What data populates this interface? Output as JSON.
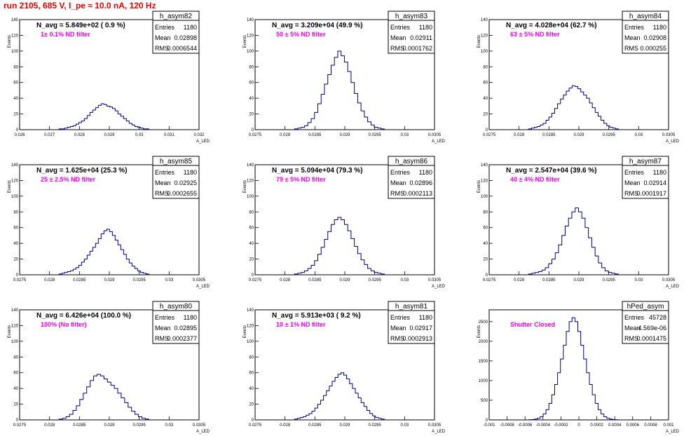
{
  "run_title": "run 2105,   685 V, I_pe ≈ 10.0 nA, 120 Hz",
  "colors": {
    "title": "#ee0000",
    "histogram": "#000080",
    "annotation": "#ee00ee",
    "frame": "#000000",
    "background": "#ffffff"
  },
  "chart_data": [
    {
      "type": "bar",
      "name": "h_asym82",
      "title": "N_avg = 5.849e+02 ( 0.9 %)",
      "annotation": "1± 0.1% ND filter",
      "stats": [
        [
          "Entries",
          "1180"
        ],
        [
          "Mean",
          "0.02898"
        ],
        [
          "RMS",
          "0.0006544"
        ]
      ],
      "ylabel": "Events",
      "xlabel": "A_LED",
      "xlim": [
        0.026,
        0.032
      ],
      "ylim": [
        0,
        140
      ],
      "xticks": [
        "0.026",
        "0.027",
        "0.028",
        "0.029",
        "0.03",
        "0.031",
        "0.032"
      ],
      "yticks": [
        "0",
        "20",
        "40",
        "60",
        "80",
        "100",
        "120",
        "140"
      ],
      "values": [
        1,
        1,
        2,
        3,
        4,
        5,
        7,
        9,
        11,
        14,
        18,
        22,
        25,
        28,
        31,
        33,
        32,
        30,
        29,
        27,
        24,
        20,
        17,
        14,
        11,
        8,
        6,
        4,
        3,
        2,
        1,
        1
      ]
    },
    {
      "type": "bar",
      "name": "h_asym83",
      "title": "N_avg = 3.209e+04 (49.9 %)",
      "annotation": "50 ± 5% ND filter",
      "stats": [
        [
          "Entries",
          "1180"
        ],
        [
          "Mean",
          "0.02911"
        ],
        [
          "RMS",
          "0.0001762"
        ]
      ],
      "ylabel": "Events",
      "xlabel": "A_LED",
      "xlim": [
        0.0275,
        0.0305
      ],
      "ylim": [
        0,
        140
      ],
      "xticks": [
        "0.0275",
        "0.028",
        "0.0285",
        "0.029",
        "0.0295",
        "0.03",
        "0.0305"
      ],
      "yticks": [
        "0",
        "20",
        "40",
        "60",
        "80",
        "100",
        "120",
        "140"
      ],
      "values": [
        1,
        2,
        3,
        5,
        9,
        14,
        22,
        33,
        45,
        58,
        70,
        82,
        92,
        100,
        94,
        86,
        74,
        60,
        46,
        34,
        24,
        16,
        10,
        6,
        3,
        2,
        1
      ]
    },
    {
      "type": "bar",
      "name": "h_asym84",
      "title": "N_avg = 4.028e+04 (62.7 %)",
      "annotation": "63 ± 5% ND filter",
      "stats": [
        [
          "Entries",
          "1180"
        ],
        [
          "Mean",
          "0.02908"
        ],
        [
          "RMS",
          "0.000255"
        ]
      ],
      "ylabel": "Events",
      "xlabel": "A_LED",
      "xlim": [
        0.0275,
        0.0305
      ],
      "ylim": [
        0,
        140
      ],
      "xticks": [
        "0.0275",
        "0.028",
        "0.0285",
        "0.029",
        "0.0295",
        "0.03",
        "0.0305"
      ],
      "yticks": [
        "0",
        "20",
        "40",
        "60",
        "80",
        "100",
        "120",
        "140"
      ],
      "values": [
        1,
        2,
        3,
        4,
        6,
        8,
        12,
        16,
        21,
        27,
        33,
        39,
        44,
        49,
        53,
        56,
        55,
        52,
        48,
        44,
        40,
        34,
        28,
        22,
        17,
        12,
        8,
        5,
        3,
        2,
        1
      ]
    },
    {
      "type": "bar",
      "name": "h_asym85",
      "title": "N_avg = 1.625e+04 (25.3 %)",
      "annotation": "25 ± 2.5% ND filter",
      "stats": [
        [
          "Entries",
          "1180"
        ],
        [
          "Mean",
          "0.02925"
        ],
        [
          "RMS",
          "0.0002655"
        ]
      ],
      "ylabel": "Events",
      "xlabel": "A_LED",
      "xlim": [
        0.0275,
        0.0305
      ],
      "ylim": [
        0,
        140
      ],
      "xticks": [
        "0.0275",
        "0.028",
        "0.0285",
        "0.029",
        "0.0295",
        "0.03",
        "0.0305"
      ],
      "yticks": [
        "0",
        "20",
        "40",
        "60",
        "80",
        "100",
        "120",
        "140"
      ],
      "values": [
        1,
        2,
        3,
        4,
        5,
        7,
        9,
        12,
        16,
        20,
        25,
        30,
        35,
        40,
        46,
        52,
        56,
        58,
        55,
        50,
        44,
        38,
        32,
        26,
        20,
        15,
        11,
        8,
        5,
        3,
        2,
        1
      ]
    },
    {
      "type": "bar",
      "name": "h_asym86",
      "title": "N_avg = 5.094e+04 (79.3 %)",
      "annotation": "79 ± 5% ND filter",
      "stats": [
        [
          "Entries",
          "1180"
        ],
        [
          "Mean",
          "0.02896"
        ],
        [
          "RMS",
          "0.0002113"
        ]
      ],
      "ylabel": "Events",
      "xlabel": "A_LED",
      "xlim": [
        0.0275,
        0.0305
      ],
      "ylim": [
        0,
        140
      ],
      "xticks": [
        "0.0275",
        "0.028",
        "0.0285",
        "0.029",
        "0.0295",
        "0.03",
        "0.0305"
      ],
      "yticks": [
        "0",
        "20",
        "40",
        "60",
        "80",
        "100",
        "120",
        "140"
      ],
      "values": [
        1,
        2,
        3,
        5,
        8,
        12,
        18,
        26,
        35,
        45,
        55,
        64,
        70,
        73,
        70,
        64,
        56,
        46,
        36,
        27,
        19,
        13,
        8,
        5,
        3,
        2,
        1
      ]
    },
    {
      "type": "bar",
      "name": "h_asym87",
      "title": "N_avg = 2.547e+04 (39.6 %)",
      "annotation": "40 ± 4% ND filter",
      "stats": [
        [
          "Entries",
          "1180"
        ],
        [
          "Mean",
          "0.02914"
        ],
        [
          "RMS",
          "0.0001917"
        ]
      ],
      "ylabel": "Events",
      "xlabel": "A_LED",
      "xlim": [
        0.0275,
        0.0305
      ],
      "ylim": [
        0,
        140
      ],
      "xticks": [
        "0.0275",
        "0.028",
        "0.0285",
        "0.029",
        "0.0295",
        "0.03",
        "0.0305"
      ],
      "yticks": [
        "0",
        "20",
        "40",
        "60",
        "80",
        "100",
        "120",
        "140"
      ],
      "values": [
        1,
        2,
        3,
        4,
        6,
        9,
        14,
        20,
        28,
        38,
        50,
        62,
        72,
        80,
        85,
        80,
        72,
        60,
        47,
        35,
        24,
        15,
        9,
        5,
        3,
        2,
        1
      ]
    },
    {
      "type": "bar",
      "name": "h_asym80",
      "title": "N_avg = 6.426e+04 (100.0 %)",
      "annotation": "100% (No filter)",
      "stats": [
        [
          "Entries",
          "1180"
        ],
        [
          "Mean",
          "0.02895"
        ],
        [
          "RMS",
          "0.0002377"
        ]
      ],
      "ylabel": "Events",
      "xlabel": "A_LED",
      "xlim": [
        0.0275,
        0.0305
      ],
      "ylim": [
        0,
        140
      ],
      "xticks": [
        "0.0275",
        "0.028",
        "0.0285",
        "0.029",
        "0.0295",
        "0.03",
        "0.0305"
      ],
      "yticks": [
        "0",
        "20",
        "40",
        "60",
        "80",
        "100",
        "120",
        "140"
      ],
      "values": [
        1,
        2,
        4,
        7,
        12,
        18,
        26,
        34,
        42,
        50,
        56,
        58,
        56,
        52,
        48,
        44,
        40,
        34,
        28,
        22,
        16,
        11,
        7,
        4,
        2,
        1
      ]
    },
    {
      "type": "bar",
      "name": "h_asym81",
      "title": "N_avg = 5.913e+03 ( 9.2 %)",
      "annotation": "10 ± 1% ND filter",
      "stats": [
        [
          "Entries",
          "1180"
        ],
        [
          "Mean",
          "0.02917"
        ],
        [
          "RMS",
          "0.0002913"
        ]
      ],
      "ylabel": "Events",
      "xlabel": "A_LED",
      "xlim": [
        0.0275,
        0.0305
      ],
      "ylim": [
        0,
        140
      ],
      "xticks": [
        "0.0275",
        "0.028",
        "0.0285",
        "0.029",
        "0.0295",
        "0.03",
        "0.0305"
      ],
      "yticks": [
        "0",
        "20",
        "40",
        "60",
        "80",
        "100",
        "120",
        "140"
      ],
      "values": [
        1,
        2,
        3,
        4,
        6,
        8,
        11,
        15,
        20,
        25,
        31,
        37,
        43,
        49,
        54,
        58,
        60,
        57,
        52,
        46,
        40,
        34,
        28,
        22,
        17,
        12,
        8,
        5,
        3,
        2,
        1
      ]
    },
    {
      "type": "bar",
      "name": "hPed_asym",
      "title": "",
      "annotation": "Shutter Closed",
      "stats": [
        [
          "Entries",
          "45728"
        ],
        [
          "Mean",
          "4.569e-06"
        ],
        [
          "RMS",
          "0.0001475"
        ]
      ],
      "ylabel": "Events",
      "xlabel": "A_LED",
      "xlim": [
        -0.001,
        0.001
      ],
      "ylim": [
        0,
        2800
      ],
      "xticks": [
        "-0.001",
        "-0.0008",
        "-0.0006",
        "-0.0004",
        "-0.0002",
        "0",
        "0.0002",
        "0.0004",
        "0.0006",
        "0.0008",
        "0.001"
      ],
      "yticks": [
        "0",
        "500",
        "1000",
        "1500",
        "2000",
        "2500"
      ],
      "values": [
        5,
        10,
        20,
        40,
        80,
        150,
        260,
        420,
        640,
        900,
        1200,
        1550,
        1900,
        2250,
        2500,
        2600,
        2500,
        2250,
        1900,
        1550,
        1200,
        900,
        640,
        420,
        260,
        150,
        80,
        40,
        20,
        10,
        5
      ]
    }
  ]
}
